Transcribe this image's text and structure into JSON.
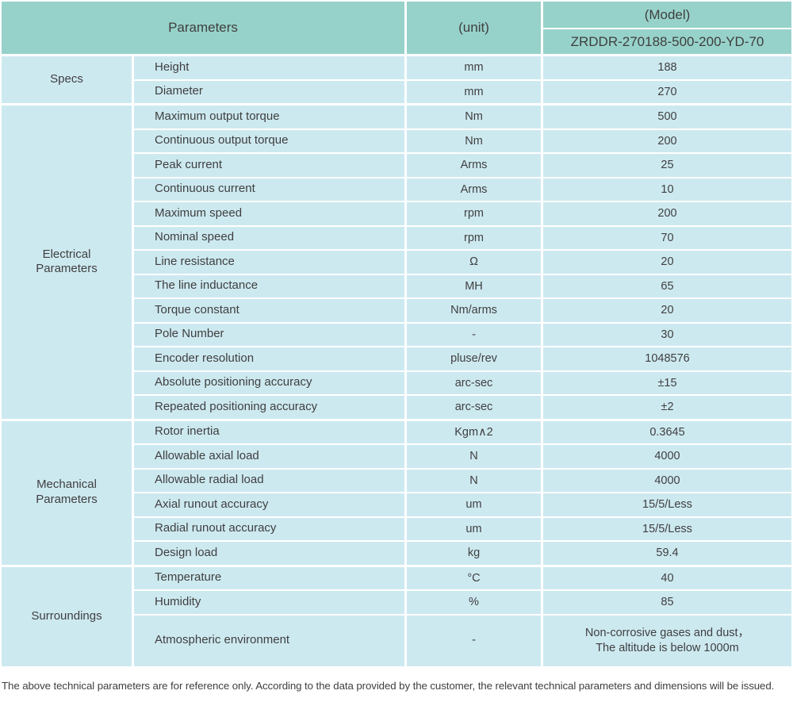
{
  "header": {
    "parameters_label": "Parameters",
    "unit_label": "(unit)",
    "model_label": "(Model)",
    "model_value": "ZRDDR-270188-500-200-YD-70"
  },
  "sections": [
    {
      "label": "Specs",
      "rows": [
        {
          "name": "Height",
          "unit": "mm",
          "value": "188"
        },
        {
          "name": "Diameter",
          "unit": "mm",
          "value": "270"
        }
      ]
    },
    {
      "label": "Electrical\nParameters",
      "rows": [
        {
          "name": "Maximum output torque",
          "unit": "Nm",
          "value": "500"
        },
        {
          "name": "Continuous output torque",
          "unit": "Nm",
          "value": "200"
        },
        {
          "name": "Peak current",
          "unit": "Arms",
          "value": "25"
        },
        {
          "name": "Continuous current",
          "unit": "Arms",
          "value": "10"
        },
        {
          "name": "Maximum speed",
          "unit": "rpm",
          "value": "200"
        },
        {
          "name": "Nominal speed",
          "unit": "rpm",
          "value": "70"
        },
        {
          "name": "Line resistance",
          "unit": "Ω",
          "value": "20"
        },
        {
          "name": "The line inductance",
          "unit": "MH",
          "value": "65"
        },
        {
          "name": "Torque constant",
          "unit": "Nm/arms",
          "value": "20"
        },
        {
          "name": "Pole Number",
          "unit": "-",
          "value": "30"
        },
        {
          "name": "Encoder resolution",
          "unit": "pluse/rev",
          "value": "1048576"
        },
        {
          "name": "Absolute positioning accuracy",
          "unit": "arc-sec",
          "value": "±15"
        },
        {
          "name": "Repeated positioning accuracy",
          "unit": "arc-sec",
          "value": "±2"
        }
      ]
    },
    {
      "label": "Mechanical\nParameters",
      "rows": [
        {
          "name": "Rotor inertia",
          "unit": "Kgm∧2",
          "value": "0.3645"
        },
        {
          "name": "Allowable axial load",
          "unit": "N",
          "value": "4000"
        },
        {
          "name": "Allowable radial load",
          "unit": "N",
          "value": "4000"
        },
        {
          "name": "Axial runout accuracy",
          "unit": "um",
          "value": "15/5/Less"
        },
        {
          "name": "Radial runout accuracy",
          "unit": "um",
          "value": "15/5/Less"
        },
        {
          "name": "Design load",
          "unit": "kg",
          "value": "59.4"
        }
      ]
    },
    {
      "label": "Surroundings",
      "rows": [
        {
          "name": "Temperature",
          "unit": "°C",
          "value": "40"
        },
        {
          "name": "Humidity",
          "unit": "%",
          "value": "85"
        },
        {
          "name": "Atmospheric environment",
          "unit": "-",
          "value": "Non-corrosive gases and dust，\nThe altitude is below 1000m"
        }
      ]
    }
  ],
  "footer": {
    "note": "The above technical parameters are for reference only. According to the data provided by the customer, the relevant technical parameters and dimensions will be issued."
  },
  "colors": {
    "header_bg": "#97d2ca",
    "row_bg": "#cde9f0",
    "text": "#3f3f3f"
  }
}
